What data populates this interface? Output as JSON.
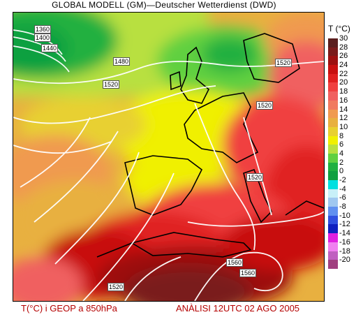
{
  "title": "GLOBAL MODELL (GM)—Deutscher Wetterdienst (DWD)",
  "legend": {
    "title": "T (°C)",
    "levels": [
      {
        "label": "30",
        "color": "#5a1e1e"
      },
      {
        "label": "28",
        "color": "#7a1a1a"
      },
      {
        "label": "26",
        "color": "#9c1010"
      },
      {
        "label": "24",
        "color": "#c81010"
      },
      {
        "label": "22",
        "color": "#e02020"
      },
      {
        "label": "20",
        "color": "#f04040"
      },
      {
        "label": "18",
        "color": "#f06060"
      },
      {
        "label": "16",
        "color": "#f07a60"
      },
      {
        "label": "14",
        "color": "#f09a50"
      },
      {
        "label": "12",
        "color": "#e8b040"
      },
      {
        "label": "10",
        "color": "#e8d030"
      },
      {
        "label": "8",
        "color": "#f0f000"
      },
      {
        "label": "6",
        "color": "#b8e040"
      },
      {
        "label": "4",
        "color": "#60d040"
      },
      {
        "label": "2",
        "color": "#20b040"
      },
      {
        "label": "0",
        "color": "#10a040"
      },
      {
        "label": "-2",
        "color": "#00e0e0"
      },
      {
        "label": "-4",
        "color": "#c8f0f8"
      },
      {
        "label": "-6",
        "color": "#a0c8f0"
      },
      {
        "label": "-8",
        "color": "#6090f0"
      },
      {
        "label": "-10",
        "color": "#3050e0"
      },
      {
        "label": "-12",
        "color": "#1020c0"
      },
      {
        "label": "-14",
        "color": "#e020e0"
      },
      {
        "label": "-16",
        "color": "#f080f0"
      },
      {
        "label": "-18",
        "color": "#c060c0"
      },
      {
        "label": "-20",
        "color": "#a04080"
      }
    ]
  },
  "contour_labels": [
    "1360",
    "1400",
    "1440",
    "1480",
    "1520",
    "1520",
    "1520",
    "1520",
    "1520",
    "1560",
    "1560",
    "1520"
  ],
  "footer": {
    "left": "T(°C) i GEOP a 850hPa",
    "right": "ANÀLISI 12UTC 02 AGO 2005"
  }
}
